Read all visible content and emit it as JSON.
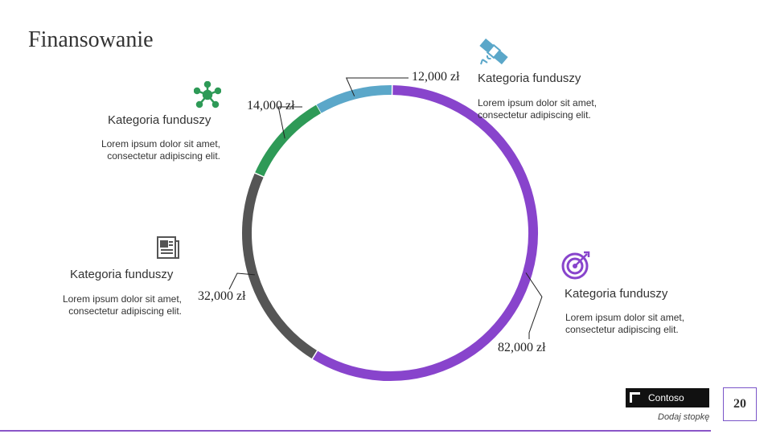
{
  "slide": {
    "title": "Finansowanie",
    "footer": {
      "brand": "Contoso",
      "text": "Dodaj stopkę"
    },
    "page_number": "20"
  },
  "blocks": [
    {
      "id": "top-left",
      "category": "Kategoria funduszy",
      "description": "Lorem ipsum dolor sit amet, consectetur adipiscing elit.",
      "icon": "network-icon",
      "color": "#2e9a57"
    },
    {
      "id": "top-right",
      "category": "Kategoria funduszy",
      "description": "Lorem ipsum dolor sit amet, consectetur adipiscing elit.",
      "icon": "satellite-icon",
      "color": "#5ba7c9"
    },
    {
      "id": "bottom-left",
      "category": "Kategoria funduszy",
      "description": "Lorem ipsum dolor sit amet, consectetur adipiscing elit.",
      "icon": "newspaper-icon",
      "color": "#555555"
    },
    {
      "id": "bottom-right",
      "category": "Kategoria funduszy",
      "description": "Lorem ipsum dolor sit amet, consectetur adipiscing elit.",
      "icon": "target-icon",
      "color": "#8844cc"
    }
  ],
  "chart_data": {
    "type": "pie",
    "subtype": "donut",
    "title": "",
    "unit": "zł",
    "categories": [
      "Kategoria funduszy (satelita)",
      "Kategoria funduszy (cel)",
      "Kategoria funduszy (dokument)",
      "Kategoria funduszy (sieć)"
    ],
    "values": [
      12000,
      82000,
      32000,
      14000
    ],
    "labels": [
      "12,000 zł",
      "82,000 zł",
      "32,000 zł",
      "14,000 zł"
    ],
    "colors": [
      "#5ba7c9",
      "#8844cc",
      "#555555",
      "#2e9a57"
    ],
    "start_angle_deg": -30,
    "legend": "none"
  }
}
